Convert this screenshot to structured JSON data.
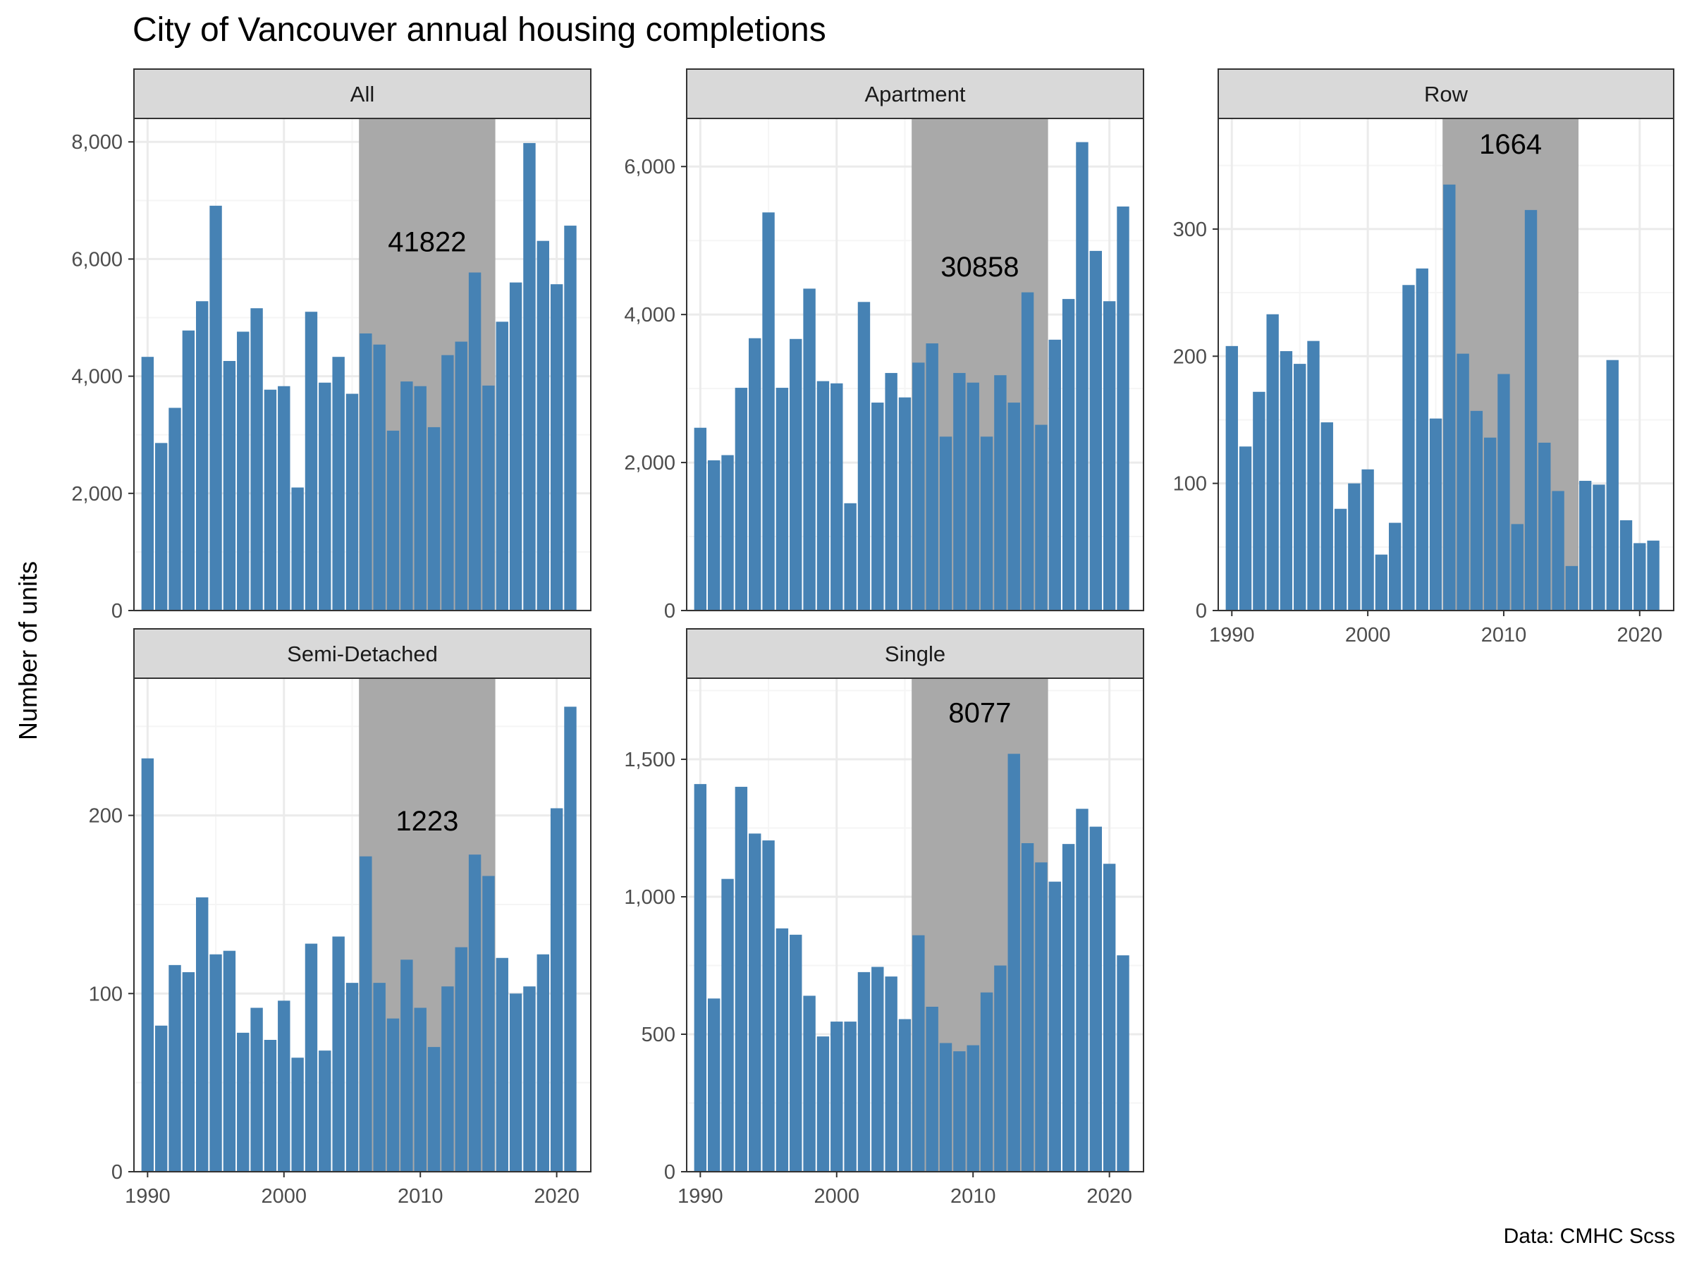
{
  "title": "City of Vancouver annual housing completions",
  "ylabel": "Number of units",
  "caption": "Data: CMHC Scss",
  "colors": {
    "bar": "#4682b4",
    "highlight": "#a9a9a9",
    "strip": "#d9d9d9",
    "grid_major": "#ebebeb",
    "grid_minor": "#f5f5f5",
    "border": "#333333"
  },
  "chart_data": [
    {
      "type": "bar",
      "panel": "All",
      "x": [
        1990,
        1991,
        1992,
        1993,
        1994,
        1995,
        1996,
        1997,
        1998,
        1999,
        2000,
        2001,
        2002,
        2003,
        2004,
        2005,
        2006,
        2007,
        2008,
        2009,
        2010,
        2011,
        2012,
        2013,
        2014,
        2015,
        2016,
        2017,
        2018,
        2019,
        2020,
        2021
      ],
      "values": [
        4330,
        2860,
        3460,
        4780,
        5280,
        6910,
        4260,
        4760,
        5160,
        3770,
        3830,
        2100,
        5100,
        3890,
        4330,
        3700,
        4730,
        4540,
        3070,
        3910,
        3830,
        3130,
        4360,
        4590,
        5770,
        3840,
        4930,
        5600,
        7980,
        6310,
        5570,
        6570
      ],
      "ylim": [
        0,
        8400
      ],
      "yticks": [
        0,
        2000,
        4000,
        6000,
        8000
      ],
      "ytick_labels": [
        "0",
        "2,000",
        "4,000",
        "6,000",
        "8,000"
      ],
      "highlight_range": [
        2005.5,
        2015.5
      ],
      "annotation": "41822",
      "annotation_y": 6300
    },
    {
      "type": "bar",
      "panel": "Apartment",
      "x": [
        1990,
        1991,
        1992,
        1993,
        1994,
        1995,
        1996,
        1997,
        1998,
        1999,
        2000,
        2001,
        2002,
        2003,
        2004,
        2005,
        2006,
        2007,
        2008,
        2009,
        2010,
        2011,
        2012,
        2013,
        2014,
        2015,
        2016,
        2017,
        2018,
        2019,
        2020,
        2021
      ],
      "values": [
        2470,
        2030,
        2100,
        3010,
        3680,
        5380,
        3010,
        3670,
        4350,
        3100,
        3070,
        1450,
        4170,
        2810,
        3210,
        2880,
        3350,
        3610,
        2350,
        3210,
        3080,
        2350,
        3180,
        2810,
        4300,
        2510,
        3660,
        4210,
        6330,
        4860,
        4180,
        5460
      ],
      "ylim": [
        0,
        6650
      ],
      "yticks": [
        0,
        2000,
        4000,
        6000
      ],
      "ytick_labels": [
        "0",
        "2,000",
        "4,000",
        "6,000"
      ],
      "highlight_range": [
        2005.5,
        2015.5
      ],
      "annotation": "30858",
      "annotation_y": 4650
    },
    {
      "type": "bar",
      "panel": "Row",
      "x": [
        1990,
        1991,
        1992,
        1993,
        1994,
        1995,
        1996,
        1997,
        1998,
        1999,
        2000,
        2001,
        2002,
        2003,
        2004,
        2005,
        2006,
        2007,
        2008,
        2009,
        2010,
        2011,
        2012,
        2013,
        2014,
        2015,
        2016,
        2017,
        2018,
        2019,
        2020,
        2021
      ],
      "values": [
        208,
        129,
        172,
        233,
        204,
        194,
        212,
        148,
        80,
        100,
        111,
        44,
        69,
        256,
        269,
        151,
        335,
        202,
        157,
        136,
        186,
        68,
        315,
        132,
        94,
        35,
        102,
        99,
        197,
        71,
        53,
        55
      ],
      "ylim": [
        0,
        387
      ],
      "yticks": [
        0,
        100,
        200,
        300
      ],
      "ytick_labels": [
        "0",
        "100",
        "200",
        "300"
      ],
      "highlight_range": [
        2005.5,
        2015.5
      ],
      "annotation": "1664",
      "annotation_y": 367
    },
    {
      "type": "bar",
      "panel": "Semi-Detached",
      "x": [
        1990,
        1991,
        1992,
        1993,
        1994,
        1995,
        1996,
        1997,
        1998,
        1999,
        2000,
        2001,
        2002,
        2003,
        2004,
        2005,
        2006,
        2007,
        2008,
        2009,
        2010,
        2011,
        2012,
        2013,
        2014,
        2015,
        2016,
        2017,
        2018,
        2019,
        2020,
        2021
      ],
      "values": [
        232,
        82,
        116,
        112,
        154,
        122,
        124,
        78,
        92,
        74,
        96,
        64,
        128,
        68,
        132,
        106,
        177,
        106,
        86,
        119,
        92,
        70,
        104,
        126,
        178,
        166,
        120,
        100,
        104,
        122,
        204,
        261
      ],
      "ylim": [
        0,
        277
      ],
      "yticks": [
        0,
        100,
        200
      ],
      "ytick_labels": [
        "0",
        "100",
        "200"
      ],
      "highlight_range": [
        2005.5,
        2015.5
      ],
      "annotation": "1223",
      "annotation_y": 197
    },
    {
      "type": "bar",
      "panel": "Single",
      "x": [
        1990,
        1991,
        1992,
        1993,
        1994,
        1995,
        1996,
        1997,
        1998,
        1999,
        2000,
        2001,
        2002,
        2003,
        2004,
        2005,
        2006,
        2007,
        2008,
        2009,
        2010,
        2011,
        2012,
        2013,
        2014,
        2015,
        2016,
        2017,
        2018,
        2019,
        2020,
        2021
      ],
      "values": [
        1410,
        630,
        1065,
        1400,
        1230,
        1205,
        885,
        862,
        640,
        492,
        546,
        546,
        726,
        745,
        710,
        555,
        860,
        600,
        468,
        438,
        460,
        652,
        750,
        1520,
        1195,
        1125,
        1055,
        1192,
        1320,
        1255,
        1120,
        787
      ],
      "ylim": [
        0,
        1795
      ],
      "yticks": [
        0,
        500,
        1000,
        1500
      ],
      "ytick_labels": [
        "0",
        "500",
        "1,000",
        "1,500"
      ],
      "highlight_range": [
        2005.5,
        2015.5
      ],
      "annotation": "8077",
      "annotation_y": 1670
    }
  ],
  "x_axis": {
    "xlim": [
      1989.0,
      2022.5
    ],
    "ticks": [
      1990,
      2000,
      2010,
      2020
    ],
    "tick_labels": [
      "1990",
      "2000",
      "2010",
      "2020"
    ]
  }
}
